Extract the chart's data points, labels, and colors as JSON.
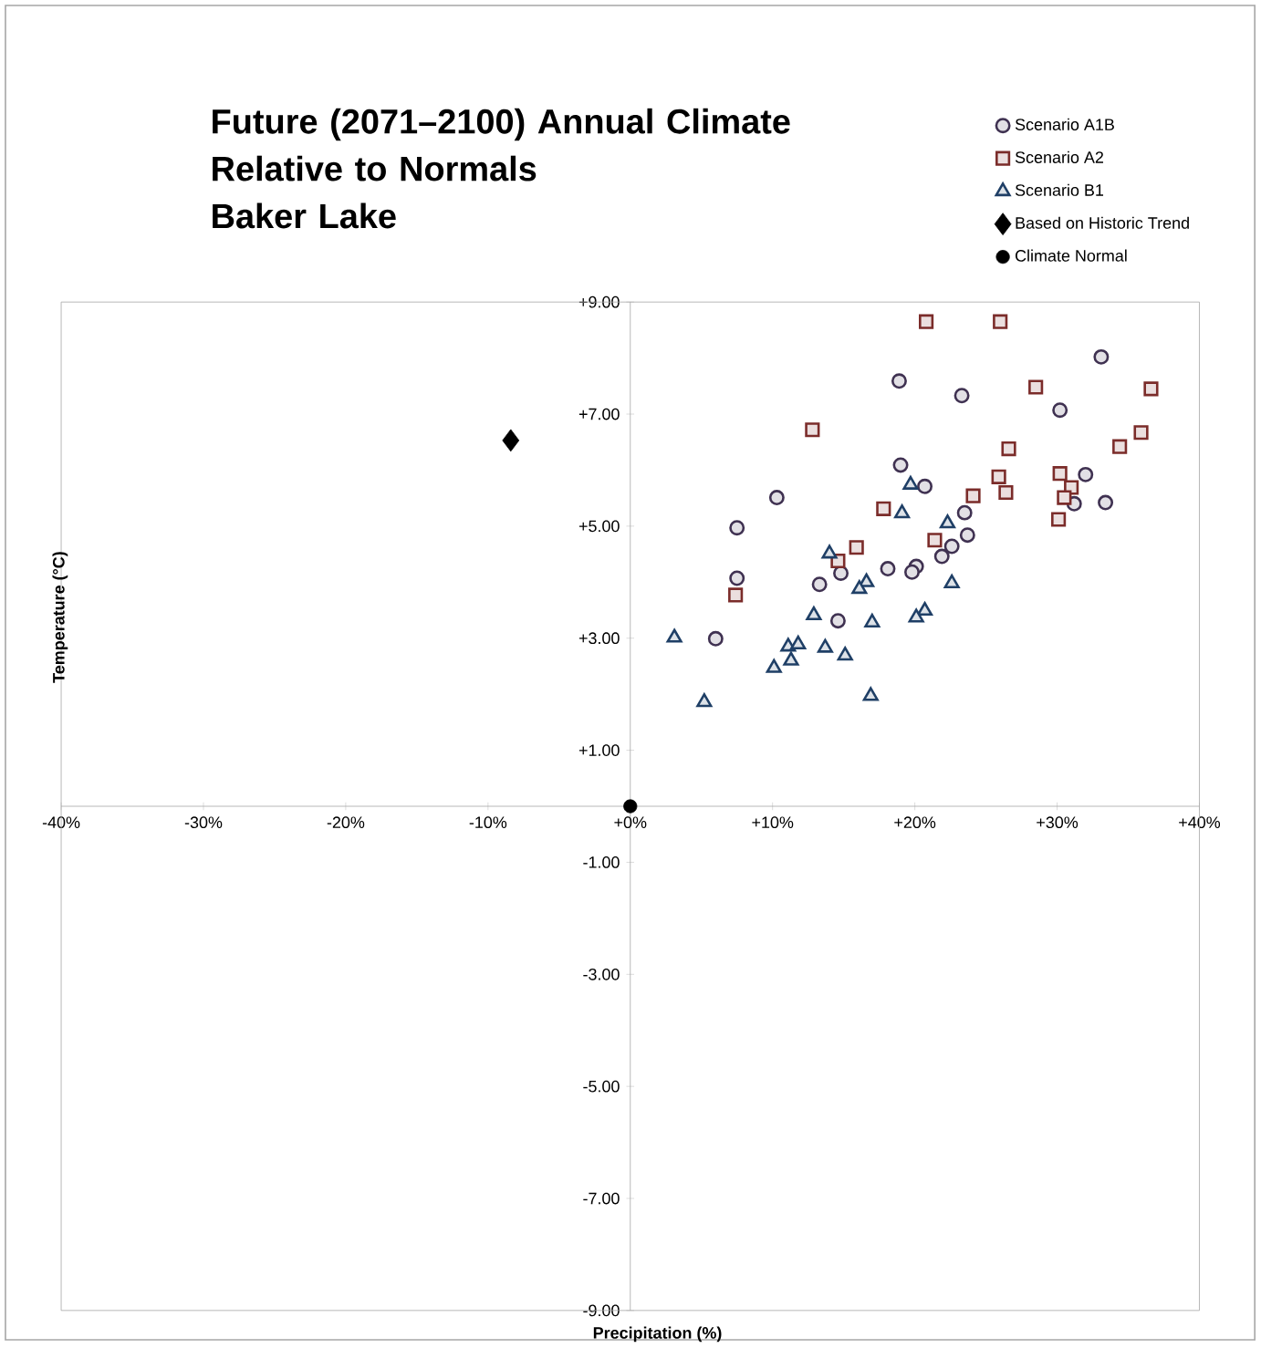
{
  "chart_data": {
    "type": "scatter",
    "title": "Future (2071–2100) Annual Climate Relative to Normals",
    "subtitle": "Baker Lake",
    "xlabel": "Precipitation (%)",
    "ylabel": "Temperature (°C)",
    "xlim": [
      -40,
      40
    ],
    "ylim": [
      -9,
      9
    ],
    "xticks": [
      {
        "value": -40,
        "label": "-40%"
      },
      {
        "value": -30,
        "label": "-30%"
      },
      {
        "value": -20,
        "label": "-20%"
      },
      {
        "value": -10,
        "label": "-10%"
      },
      {
        "value": 0,
        "label": "+0%"
      },
      {
        "value": 10,
        "label": "+10%"
      },
      {
        "value": 20,
        "label": "+20%"
      },
      {
        "value": 30,
        "label": "+30%"
      },
      {
        "value": 40,
        "label": "+40%"
      }
    ],
    "yticks": [
      {
        "value": 9,
        "label": "+9.00"
      },
      {
        "value": 7,
        "label": "+7.00"
      },
      {
        "value": 5,
        "label": "+5.00"
      },
      {
        "value": 3,
        "label": "+3.00"
      },
      {
        "value": 1,
        "label": "+1.00"
      },
      {
        "value": -1,
        "label": "-1.00"
      },
      {
        "value": -3,
        "label": "-3.00"
      },
      {
        "value": -5,
        "label": "-5.00"
      },
      {
        "value": -7,
        "label": "-7.00"
      },
      {
        "value": -9,
        "label": "-9.00"
      }
    ],
    "legend": "top right",
    "series": [
      {
        "name": "Scenario A1B",
        "color": "#3f3151",
        "marker": "circle",
        "x": [
          18.9,
          19.0,
          20.7,
          10.3,
          7.5,
          7.5,
          6.0,
          13.3,
          14.8,
          14.6,
          18.1,
          20.1,
          19.8,
          33.1,
          23.3,
          30.2,
          32.0,
          31.2,
          33.4,
          23.5,
          23.7,
          22.6,
          21.9
        ],
        "values": [
          7.59,
          6.09,
          5.71,
          5.51,
          4.97,
          4.07,
          2.99,
          3.96,
          4.16,
          3.31,
          4.24,
          4.28,
          4.18,
          8.02,
          7.33,
          7.07,
          5.92,
          5.4,
          5.42,
          5.24,
          4.84,
          4.64,
          4.46
        ]
      },
      {
        "name": "Scenario A2",
        "color": "#7b2c2a",
        "marker": "square",
        "x": [
          20.8,
          12.8,
          17.8,
          15.9,
          14.6,
          7.4,
          21.4,
          26.0,
          28.5,
          36.6,
          26.6,
          35.9,
          34.4,
          25.9,
          26.4,
          24.1,
          30.2,
          31.0,
          30.5,
          30.1
        ],
        "values": [
          8.65,
          6.72,
          5.31,
          4.62,
          4.38,
          3.77,
          4.75,
          8.65,
          7.48,
          7.45,
          6.38,
          6.67,
          6.42,
          5.88,
          5.6,
          5.54,
          5.94,
          5.69,
          5.51,
          5.12
        ]
      },
      {
        "name": "Scenario B1",
        "color": "#1f3f66",
        "marker": "triangle",
        "x": [
          19.7,
          19.1,
          14.0,
          16.6,
          16.1,
          12.9,
          17.0,
          3.1,
          11.1,
          11.8,
          13.7,
          15.1,
          11.3,
          10.1,
          5.2,
          16.9,
          22.3,
          22.6,
          20.7,
          20.1
        ],
        "values": [
          5.74,
          5.23,
          4.51,
          4.0,
          3.88,
          3.41,
          3.28,
          3.01,
          2.85,
          2.89,
          2.83,
          2.69,
          2.6,
          2.47,
          1.86,
          1.97,
          5.05,
          3.98,
          3.49,
          3.37
        ]
      },
      {
        "name": "Based on Historic Trend",
        "color": "#000000",
        "marker": "diamond",
        "x": [
          -8.4
        ],
        "values": [
          6.53
        ]
      },
      {
        "name": "Climate Normal",
        "color": "#000000",
        "marker": "circle",
        "x": [
          0
        ],
        "values": [
          0
        ]
      }
    ]
  }
}
